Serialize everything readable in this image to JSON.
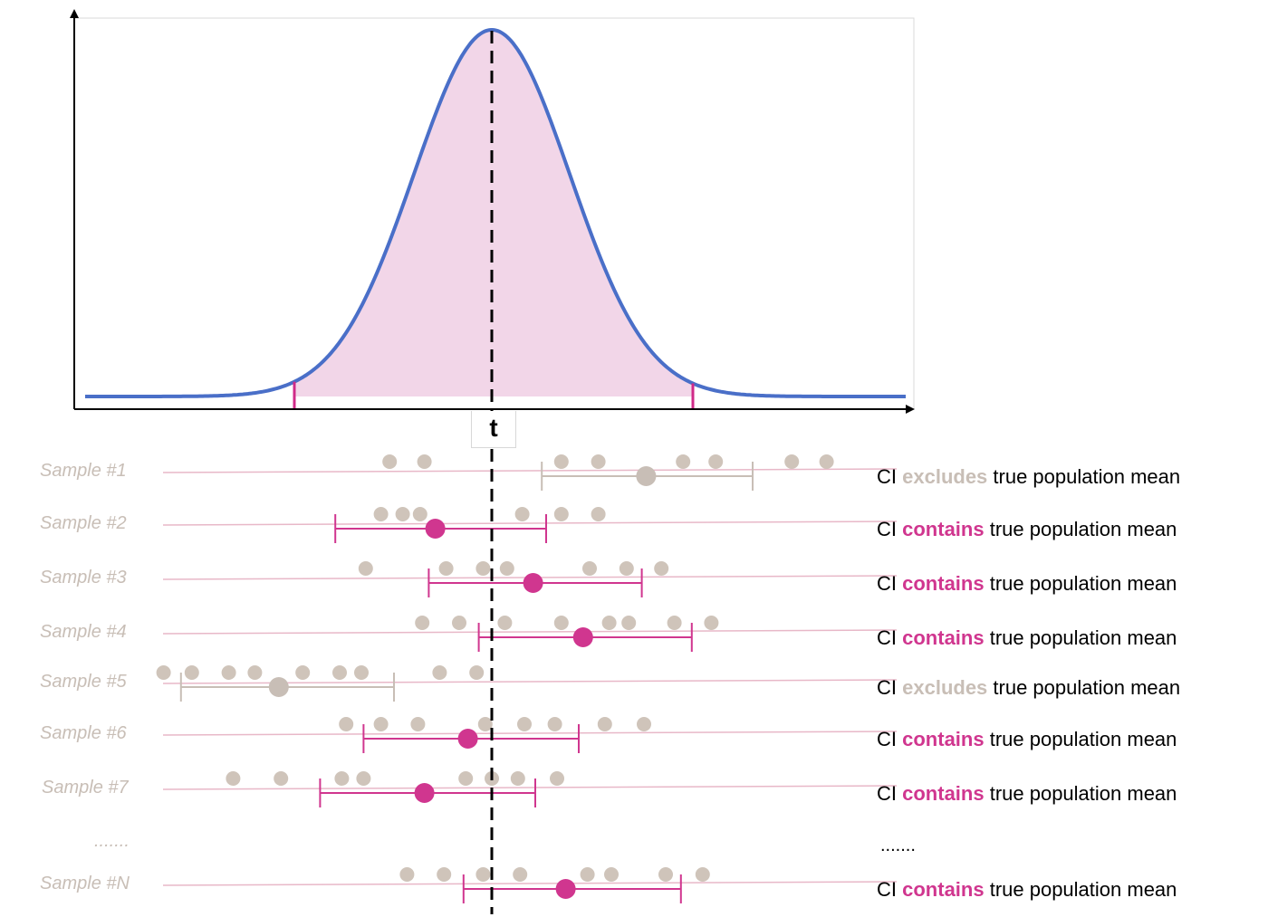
{
  "colors": {
    "curve": "#4a6fc8",
    "fill": "#f2d6e8",
    "critical": "#d02a88",
    "contains": "#d0368f",
    "excludes": "#c8beb6",
    "guide": "#e8b8c8",
    "points": "#cfc4ba"
  },
  "t_label": "t",
  "ci_prefix": "CI",
  "ci_suffix": "true population mean",
  "ellipsis": ".......",
  "rows": [
    {
      "label": "Sample #1",
      "status": "excludes",
      "mean": 3.55,
      "ci": [
        1.15,
        6.0
      ],
      "points": [
        -2.35,
        -1.55,
        1.6,
        2.45,
        4.4,
        5.15,
        6.9,
        7.7
      ]
    },
    {
      "label": "Sample #2",
      "status": "contains",
      "mean": -1.3,
      "ci": [
        -3.6,
        1.25
      ],
      "points": [
        -2.55,
        -2.05,
        -1.65,
        0.7,
        1.6,
        2.45
      ]
    },
    {
      "label": "Sample #3",
      "status": "contains",
      "mean": 0.95,
      "ci": [
        -1.45,
        3.45
      ],
      "points": [
        -2.9,
        -1.05,
        -0.2,
        0.35,
        2.25,
        3.1,
        3.9
      ]
    },
    {
      "label": "Sample #4",
      "status": "contains",
      "mean": 2.1,
      "ci": [
        -0.3,
        4.6
      ],
      "points": [
        -1.6,
        -0.75,
        0.3,
        1.6,
        2.7,
        3.15,
        4.2,
        5.05
      ]
    },
    {
      "label": "Sample #5",
      "status": "excludes",
      "mean": -4.9,
      "ci": [
        -7.15,
        -2.25
      ],
      "points": [
        -7.55,
        -6.9,
        -6.05,
        -5.45,
        -4.35,
        -3.5,
        -3.0,
        -1.2,
        -0.35
      ]
    },
    {
      "label": "Sample #6",
      "status": "contains",
      "mean": -0.55,
      "ci": [
        -2.95,
        2.0
      ],
      "points": [
        -3.35,
        -2.55,
        -1.7,
        -0.15,
        0.75,
        1.45,
        2.6,
        3.5
      ]
    },
    {
      "label": "Sample #7",
      "status": "contains",
      "mean": -1.55,
      "ci": [
        -3.95,
        1.0
      ],
      "points": [
        -5.95,
        -4.85,
        -3.45,
        -2.95,
        -0.6,
        0.0,
        0.6,
        1.5
      ]
    },
    {
      "label": "Sample #N",
      "status": "contains",
      "mean": 1.7,
      "ci": [
        -0.65,
        4.35
      ],
      "points": [
        -1.95,
        -1.1,
        -0.2,
        0.65,
        2.2,
        2.75,
        4.0,
        4.85
      ]
    }
  ]
}
